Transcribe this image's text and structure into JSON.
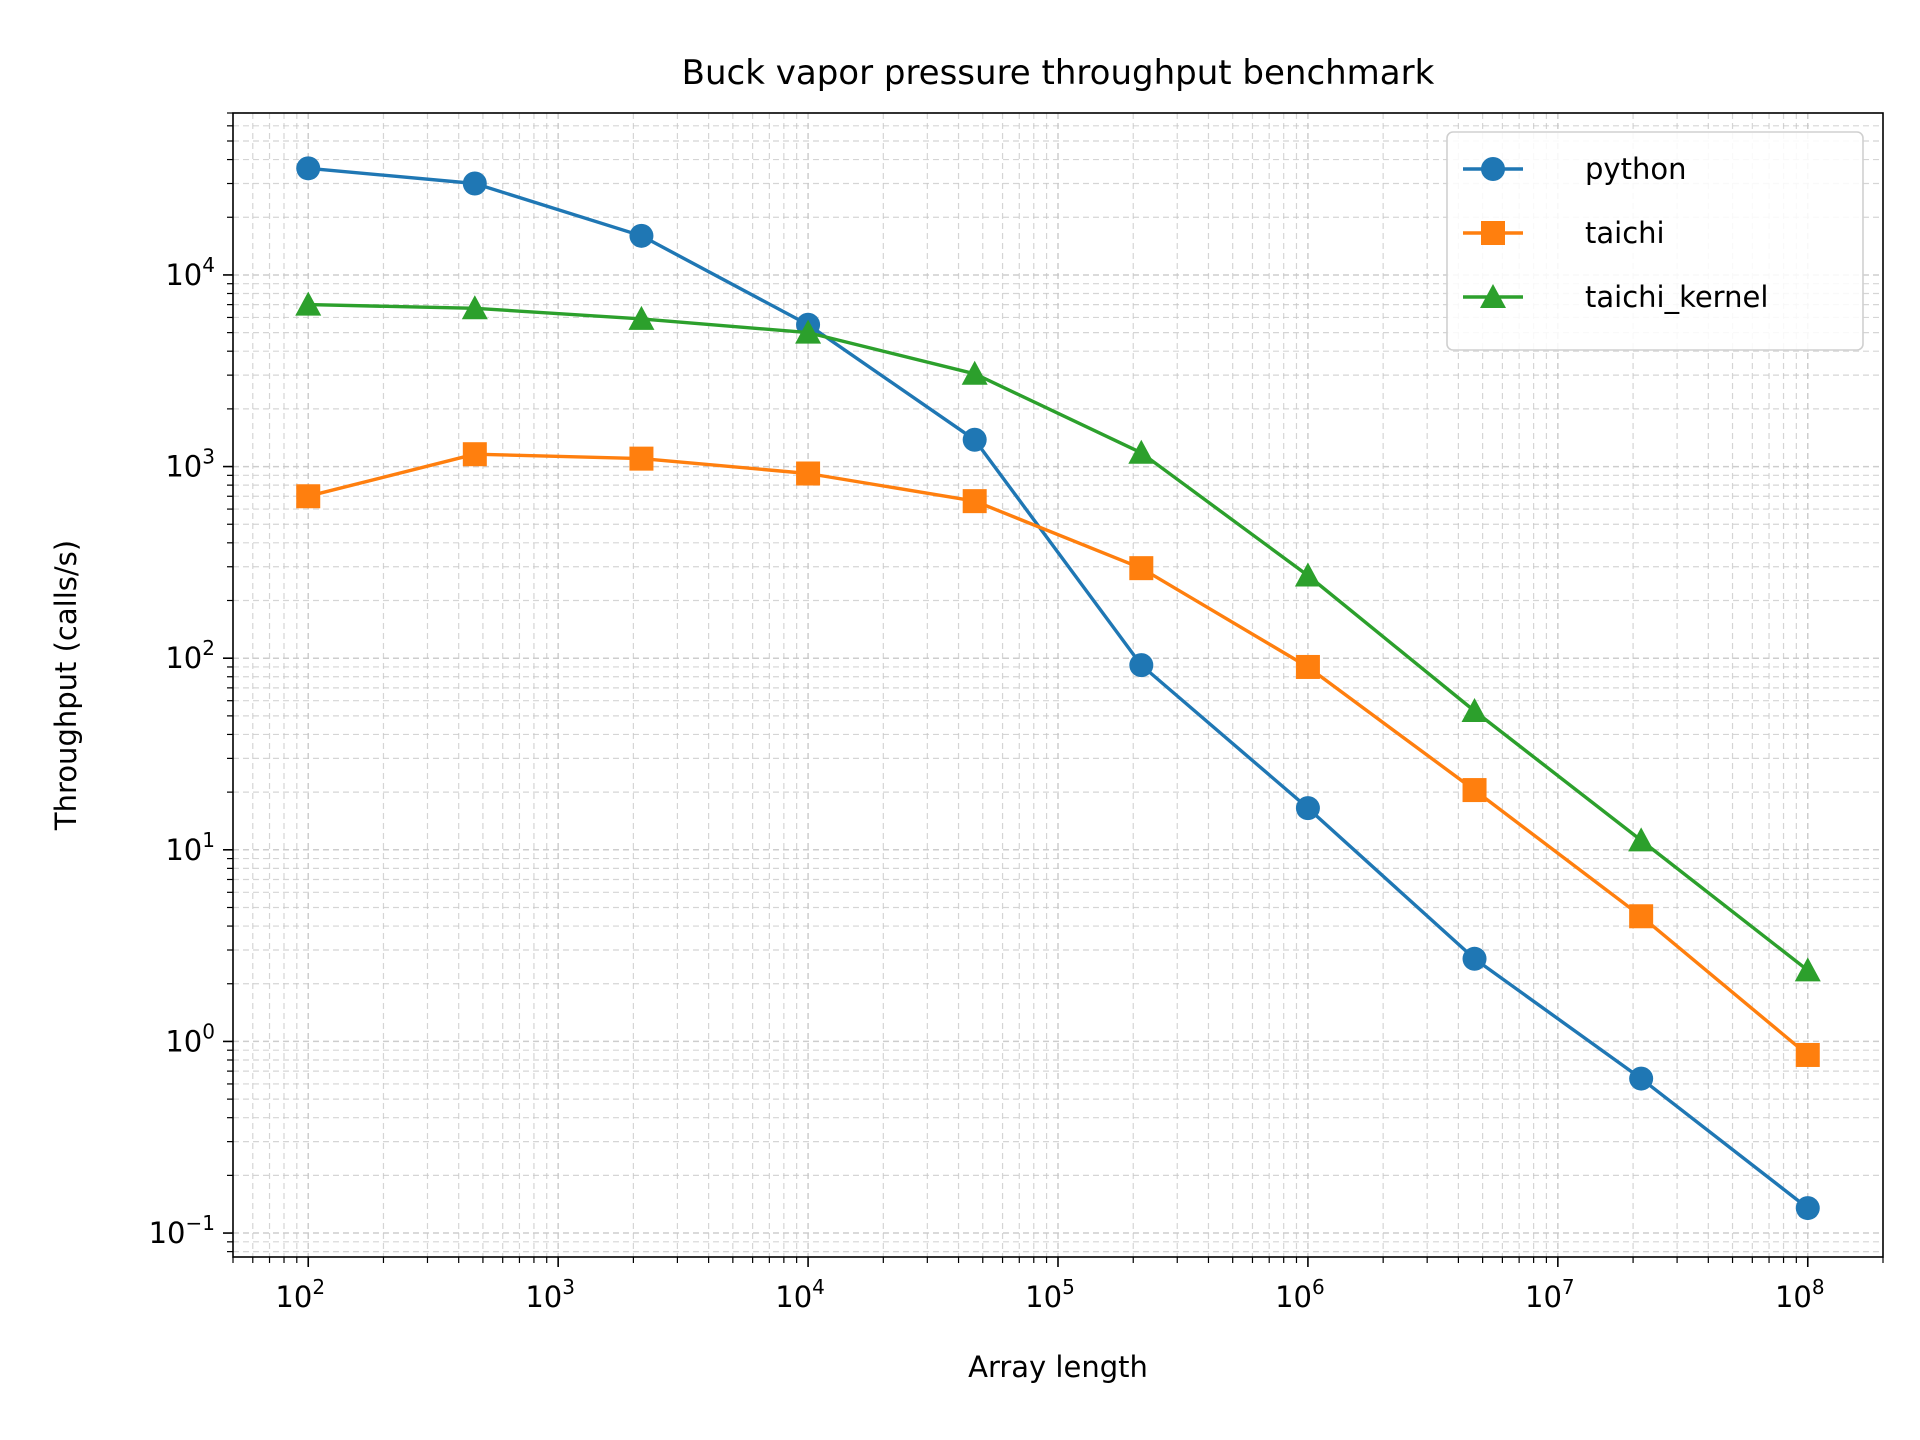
{
  "chart_data": {
    "type": "line",
    "title": "Buck vapor pressure throughput benchmark",
    "xlabel": "Array length",
    "ylabel": "Throughput (calls/s)",
    "x_scale": "log",
    "y_scale": "log",
    "xlim": [
      50,
      200000000
    ],
    "ylim": [
      0.075,
      70000
    ],
    "x_ticks": [
      {
        "value": 100,
        "mantissa": "10",
        "exp": "2"
      },
      {
        "value": 1000,
        "mantissa": "10",
        "exp": "3"
      },
      {
        "value": 10000,
        "mantissa": "10",
        "exp": "4"
      },
      {
        "value": 100000,
        "mantissa": "10",
        "exp": "5"
      },
      {
        "value": 1000000,
        "mantissa": "10",
        "exp": "6"
      },
      {
        "value": 10000000,
        "mantissa": "10",
        "exp": "7"
      },
      {
        "value": 100000000,
        "mantissa": "10",
        "exp": "8"
      }
    ],
    "y_ticks": [
      {
        "value": 0.1,
        "mantissa": "10",
        "exp": "−1"
      },
      {
        "value": 1,
        "mantissa": "10",
        "exp": "0"
      },
      {
        "value": 10,
        "mantissa": "10",
        "exp": "1"
      },
      {
        "value": 100,
        "mantissa": "10",
        "exp": "2"
      },
      {
        "value": 1000,
        "mantissa": "10",
        "exp": "3"
      },
      {
        "value": 10000,
        "mantissa": "10",
        "exp": "4"
      }
    ],
    "grid": true,
    "legend_position": "top-right",
    "x": [
      100,
      464,
      2154,
      10000,
      46416,
      215443,
      1000000,
      4641589,
      21544347,
      100000000
    ],
    "series": [
      {
        "name": "python",
        "color": "#1f77b4",
        "marker": "circle",
        "values": [
          36000,
          30000,
          16000,
          5500,
          1380,
          92,
          16.5,
          2.7,
          0.64,
          0.135
        ]
      },
      {
        "name": "taichi",
        "color": "#ff7f0e",
        "marker": "square",
        "values": [
          700,
          1160,
          1100,
          920,
          660,
          295,
          90,
          20.5,
          4.5,
          0.85
        ]
      },
      {
        "name": "taichi_kernel",
        "color": "#2ca02c",
        "marker": "triangle",
        "values": [
          7000,
          6700,
          5900,
          5000,
          3050,
          1180,
          270,
          53,
          11.2,
          2.35
        ]
      }
    ]
  }
}
